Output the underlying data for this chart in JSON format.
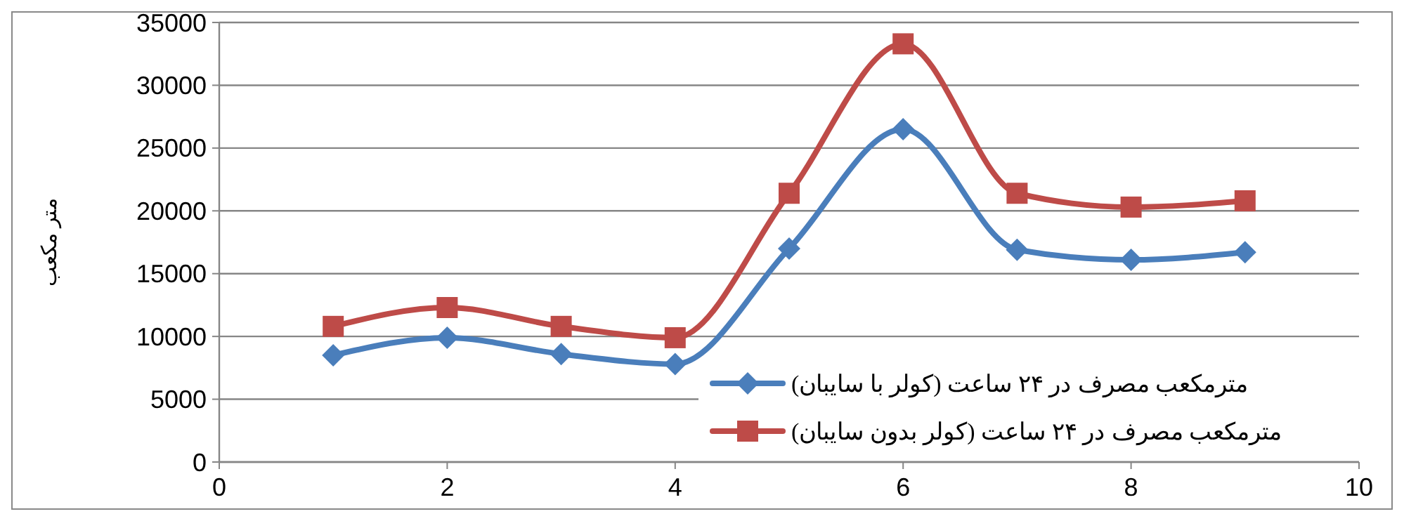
{
  "chart_data": {
    "type": "line",
    "ylabel": "متر مکعب",
    "x": [
      1,
      2,
      3,
      4,
      5,
      6,
      7,
      8,
      9
    ],
    "series": [
      {
        "name": "مترمکعب مصرف در ۲۴ ساعت (کولر با سایبان)",
        "color": "#4a7ebb",
        "marker": "diamond",
        "values": [
          8500,
          9900,
          8600,
          7800,
          17000,
          26500,
          16900,
          16100,
          16700
        ]
      },
      {
        "name": "مترمکعب مصرف در ۲۴ ساعت (کولر بدون سایبان)",
        "color": "#be4b48",
        "marker": "square",
        "values": [
          10800,
          12300,
          10800,
          9900,
          21400,
          33300,
          21400,
          20300,
          20800
        ]
      }
    ],
    "xlim": [
      0,
      10
    ],
    "xticks": [
      0,
      2,
      4,
      6,
      8,
      10
    ],
    "ylim": [
      0,
      35000
    ],
    "yticks": [
      0,
      5000,
      10000,
      15000,
      20000,
      25000,
      30000,
      35000
    ],
    "grid": "y",
    "legend": "bottom right",
    "line_style": "solid"
  }
}
